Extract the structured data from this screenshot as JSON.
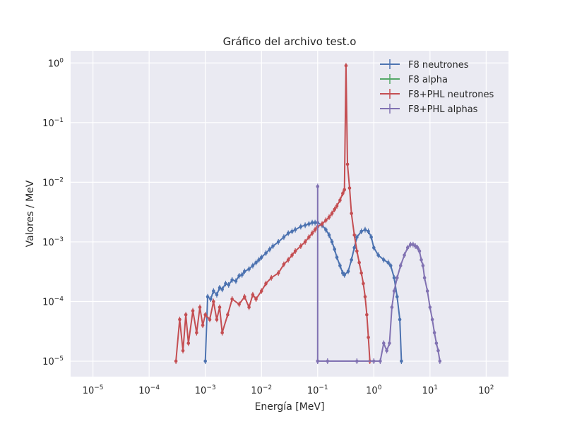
{
  "chart_data": {
    "type": "line",
    "title": "Gráfico del archivo test.o",
    "xlabel": "Energía [MeV]",
    "ylabel": "Valores / MeV",
    "x_scale": "log",
    "y_scale": "log",
    "xlim": [
      4e-06,
      250
    ],
    "ylim": [
      5.5e-06,
      1.6
    ],
    "x_ticks": [
      {
        "base": "10",
        "exp": "−5"
      },
      {
        "base": "10",
        "exp": "−4"
      },
      {
        "base": "10",
        "exp": "−3"
      },
      {
        "base": "10",
        "exp": "−2"
      },
      {
        "base": "10",
        "exp": "−1"
      },
      {
        "base": "10",
        "exp": "0"
      },
      {
        "base": "10",
        "exp": "1"
      },
      {
        "base": "10",
        "exp": "2"
      }
    ],
    "y_ticks": [
      {
        "base": "10",
        "exp": "−5"
      },
      {
        "base": "10",
        "exp": "−4"
      },
      {
        "base": "10",
        "exp": "−3"
      },
      {
        "base": "10",
        "exp": "−2"
      },
      {
        "base": "10",
        "exp": "−1"
      },
      {
        "base": "10",
        "exp": "0"
      }
    ],
    "grid": true,
    "background": "#eaeaf2",
    "legend_position": "top-right",
    "series": [
      {
        "name": "F8 neutrones",
        "color": "#4c72b0",
        "points": [
          [
            0.001,
            1e-05
          ],
          [
            0.0011,
            0.00012
          ],
          [
            0.00125,
            0.00011
          ],
          [
            0.0014,
            0.00015
          ],
          [
            0.0016,
            0.00013
          ],
          [
            0.0018,
            0.00017
          ],
          [
            0.002,
            0.00016
          ],
          [
            0.0023,
            0.0002
          ],
          [
            0.0026,
            0.00019
          ],
          [
            0.003,
            0.00023
          ],
          [
            0.0035,
            0.00022
          ],
          [
            0.004,
            0.00027
          ],
          [
            0.0045,
            0.00028
          ],
          [
            0.005,
            0.00032
          ],
          [
            0.006,
            0.00035
          ],
          [
            0.007,
            0.0004
          ],
          [
            0.008,
            0.00045
          ],
          [
            0.009,
            0.0005
          ],
          [
            0.01,
            0.00055
          ],
          [
            0.012,
            0.00065
          ],
          [
            0.014,
            0.00075
          ],
          [
            0.016,
            0.00085
          ],
          [
            0.02,
            0.001
          ],
          [
            0.025,
            0.0012
          ],
          [
            0.03,
            0.0014
          ],
          [
            0.035,
            0.0015
          ],
          [
            0.04,
            0.0016
          ],
          [
            0.05,
            0.0018
          ],
          [
            0.06,
            0.0019
          ],
          [
            0.07,
            0.002
          ],
          [
            0.08,
            0.0021
          ],
          [
            0.09,
            0.0021
          ],
          [
            0.1,
            0.0021
          ],
          [
            0.12,
            0.0019
          ],
          [
            0.14,
            0.0016
          ],
          [
            0.16,
            0.0013
          ],
          [
            0.18,
            0.001
          ],
          [
            0.2,
            0.00075
          ],
          [
            0.22,
            0.00055
          ],
          [
            0.25,
            0.0004
          ],
          [
            0.28,
            0.0003
          ],
          [
            0.3,
            0.00028
          ],
          [
            0.35,
            0.00032
          ],
          [
            0.4,
            0.0005
          ],
          [
            0.45,
            0.0008
          ],
          [
            0.5,
            0.0012
          ],
          [
            0.6,
            0.0015
          ],
          [
            0.7,
            0.0016
          ],
          [
            0.8,
            0.0015
          ],
          [
            0.9,
            0.0012
          ],
          [
            1.0,
            0.0008
          ],
          [
            1.2,
            0.0006
          ],
          [
            1.5,
            0.0005
          ],
          [
            1.8,
            0.00045
          ],
          [
            2.0,
            0.0004
          ],
          [
            2.3,
            0.00025
          ],
          [
            2.6,
            0.00012
          ],
          [
            2.9,
            5e-05
          ],
          [
            3.1,
            1e-05
          ]
        ]
      },
      {
        "name": "F8 alpha",
        "color": "#55a868",
        "points": []
      },
      {
        "name": "F8+PHL neutrones",
        "color": "#c44e52",
        "points": [
          [
            0.0003,
            1e-05
          ],
          [
            0.00035,
            5e-05
          ],
          [
            0.0004,
            1.5e-05
          ],
          [
            0.00045,
            6e-05
          ],
          [
            0.0005,
            2e-05
          ],
          [
            0.0006,
            7e-05
          ],
          [
            0.0007,
            3e-05
          ],
          [
            0.0008,
            8e-05
          ],
          [
            0.0009,
            4e-05
          ],
          [
            0.001,
            6e-05
          ],
          [
            0.0012,
            5e-05
          ],
          [
            0.0014,
            0.0001
          ],
          [
            0.0016,
            5e-05
          ],
          [
            0.0018,
            8e-05
          ],
          [
            0.002,
            3e-05
          ],
          [
            0.0025,
            6e-05
          ],
          [
            0.003,
            0.00011
          ],
          [
            0.004,
            9e-05
          ],
          [
            0.005,
            0.00012
          ],
          [
            0.006,
            8e-05
          ],
          [
            0.007,
            0.00013
          ],
          [
            0.008,
            0.00011
          ],
          [
            0.01,
            0.00015
          ],
          [
            0.012,
            0.0002
          ],
          [
            0.015,
            0.00025
          ],
          [
            0.02,
            0.0003
          ],
          [
            0.025,
            0.00042
          ],
          [
            0.03,
            0.0005
          ],
          [
            0.035,
            0.0006
          ],
          [
            0.04,
            0.0007
          ],
          [
            0.05,
            0.00085
          ],
          [
            0.06,
            0.001
          ],
          [
            0.07,
            0.0012
          ],
          [
            0.08,
            0.0014
          ],
          [
            0.09,
            0.0016
          ],
          [
            0.1,
            0.0018
          ],
          [
            0.12,
            0.002
          ],
          [
            0.14,
            0.0023
          ],
          [
            0.16,
            0.0026
          ],
          [
            0.18,
            0.003
          ],
          [
            0.2,
            0.0035
          ],
          [
            0.22,
            0.004
          ],
          [
            0.25,
            0.005
          ],
          [
            0.28,
            0.0065
          ],
          [
            0.3,
            0.0075
          ],
          [
            0.32,
            0.9
          ],
          [
            0.34,
            0.02
          ],
          [
            0.37,
            0.008
          ],
          [
            0.4,
            0.003
          ],
          [
            0.45,
            0.0013
          ],
          [
            0.5,
            0.0007
          ],
          [
            0.55,
            0.00045
          ],
          [
            0.6,
            0.0003
          ],
          [
            0.65,
            0.0002
          ],
          [
            0.7,
            0.00012
          ],
          [
            0.75,
            6e-05
          ],
          [
            0.8,
            2.5e-05
          ],
          [
            0.85,
            1e-05
          ]
        ]
      },
      {
        "name": "F8+PHL alphas",
        "color": "#8172b2",
        "points": [
          [
            0.1,
            1e-05
          ],
          [
            0.1,
            0.0085
          ],
          [
            0.1,
            1e-05
          ],
          [
            0.15,
            1e-05
          ],
          [
            0.5,
            1e-05
          ],
          [
            1.0,
            1e-05
          ],
          [
            1.3,
            1e-05
          ],
          [
            1.5,
            2e-05
          ],
          [
            1.7,
            1.5e-05
          ],
          [
            1.9,
            2e-05
          ],
          [
            2.1,
            8e-05
          ],
          [
            2.3,
            0.00015
          ],
          [
            2.6,
            0.00025
          ],
          [
            3.0,
            0.0004
          ],
          [
            3.5,
            0.0006
          ],
          [
            4.0,
            0.0008
          ],
          [
            4.5,
            0.0009
          ],
          [
            5.0,
            0.0009
          ],
          [
            5.5,
            0.00085
          ],
          [
            6.0,
            0.0008
          ],
          [
            6.5,
            0.0007
          ],
          [
            7.0,
            0.0005
          ],
          [
            7.5,
            0.0004
          ],
          [
            8.0,
            0.00025
          ],
          [
            9.0,
            0.00015
          ],
          [
            10.0,
            8e-05
          ],
          [
            11.0,
            5e-05
          ],
          [
            12.0,
            3e-05
          ],
          [
            13.0,
            2e-05
          ],
          [
            14.0,
            1.5e-05
          ],
          [
            15.0,
            1e-05
          ]
        ]
      }
    ]
  }
}
